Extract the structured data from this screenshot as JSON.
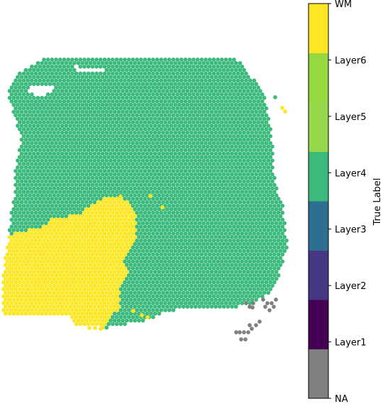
{
  "chart_data": {
    "type": "scatter",
    "title": "",
    "colorbar": {
      "label": "True Label",
      "categories": [
        "NA",
        "Layer1",
        "Layer2",
        "Layer3",
        "Layer4",
        "Layer5",
        "Layer6",
        "WM"
      ],
      "colors": [
        "#808080",
        "#440154",
        "#453781",
        "#2d6f8e",
        "#3bba7c",
        "#96d84c",
        "#95d840",
        "#fde725"
      ]
    },
    "regions": [
      {
        "name": "Layer4",
        "color": "#3bba7c",
        "description": "tissue spots covering most of the section"
      },
      {
        "name": "WM",
        "color": "#fde725",
        "description": "lower-left region"
      },
      {
        "name": "NA",
        "color": "#808080",
        "description": "small lower-right clusters"
      }
    ]
  }
}
